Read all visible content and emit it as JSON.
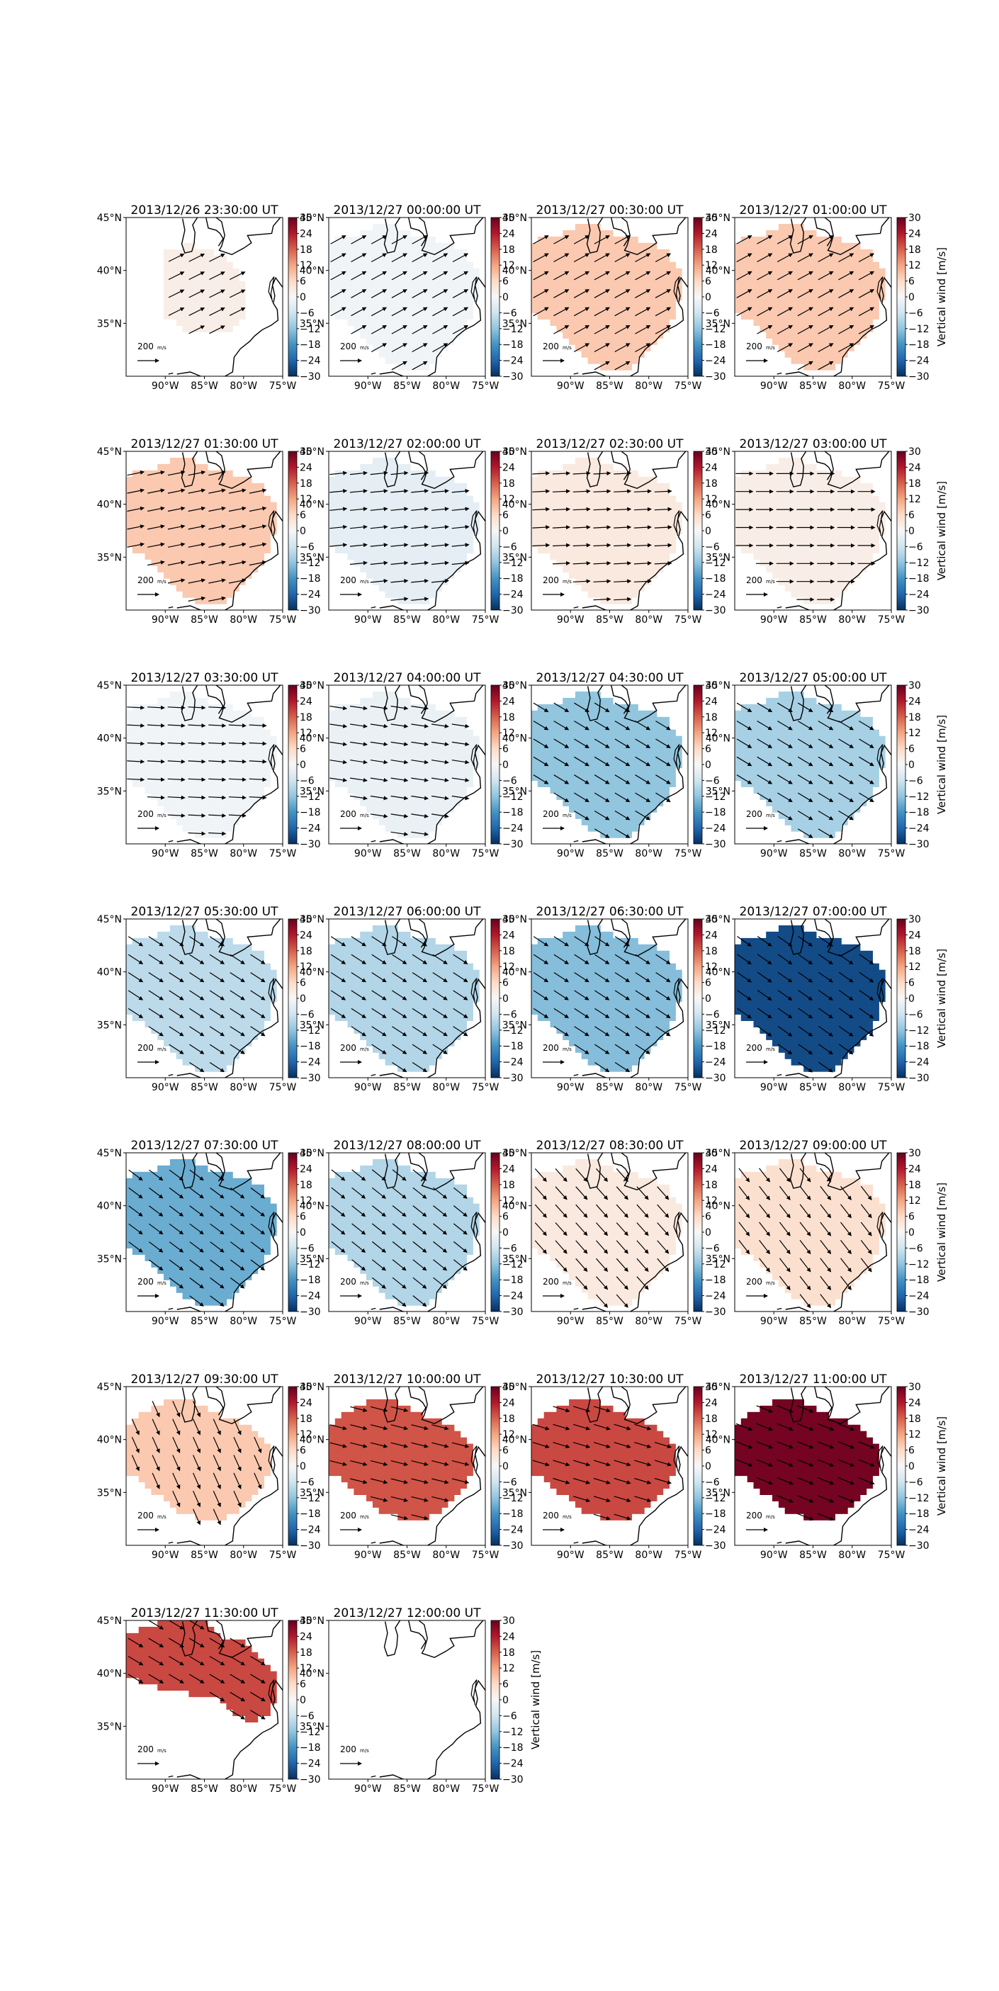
{
  "chart_data": {
    "type": "map-panels",
    "colorbar": {
      "label": "Vertical wind [m/s]",
      "vmin": -30,
      "vmax": 30,
      "ticks": [
        "30",
        "24",
        "18",
        "12",
        "6",
        "0",
        "−6",
        "−12",
        "−18",
        "−24",
        "−30"
      ],
      "colormap": "RdBu_r",
      "labeled_on_panels": [
        4,
        8,
        12,
        16,
        20,
        24,
        26
      ]
    },
    "axes": {
      "lon_ticks": [
        "90°W",
        "85°W",
        "80°W",
        "75°W"
      ],
      "lat_ticks": [
        "45°N",
        "40°N",
        "35°N"
      ],
      "lon_range": [
        -95,
        -75
      ],
      "lat_range": [
        30,
        45
      ]
    },
    "vector_key": {
      "value": "200",
      "unit": "m/s"
    },
    "panels": [
      {
        "title": "2013/12/26 23:30:00 UT",
        "vertical_wind": 2,
        "wind_u": 1.0,
        "wind_v": 0.5,
        "region": "central"
      },
      {
        "title": "2013/12/27 00:00:00 UT",
        "vertical_wind": -1,
        "wind_u": 1.0,
        "wind_v": 0.55,
        "region": "full"
      },
      {
        "title": "2013/12/27 00:30:00 UT",
        "vertical_wind": 8,
        "wind_u": 1.0,
        "wind_v": 0.55,
        "region": "full"
      },
      {
        "title": "2013/12/27 01:00:00 UT",
        "vertical_wind": 8,
        "wind_u": 1.0,
        "wind_v": 0.55,
        "region": "full"
      },
      {
        "title": "2013/12/27 01:30:00 UT",
        "vertical_wind": 8,
        "wind_u": 1.0,
        "wind_v": 0.2,
        "region": "full"
      },
      {
        "title": "2013/12/27 02:00:00 UT",
        "vertical_wind": -3,
        "wind_u": 1.0,
        "wind_v": 0.1,
        "region": "full"
      },
      {
        "title": "2013/12/27 02:30:00 UT",
        "vertical_wind": 3,
        "wind_u": 1.0,
        "wind_v": 0.05,
        "region": "full"
      },
      {
        "title": "2013/12/27 03:00:00 UT",
        "vertical_wind": 2,
        "wind_u": 1.0,
        "wind_v": 0.0,
        "region": "full"
      },
      {
        "title": "2013/12/27 03:30:00 UT",
        "vertical_wind": -1,
        "wind_u": 1.0,
        "wind_v": -0.05,
        "region": "full"
      },
      {
        "title": "2013/12/27 04:00:00 UT",
        "vertical_wind": -2,
        "wind_u": 1.0,
        "wind_v": -0.15,
        "region": "full"
      },
      {
        "title": "2013/12/27 04:30:00 UT",
        "vertical_wind": -12,
        "wind_u": 1.0,
        "wind_v": -0.6,
        "region": "full"
      },
      {
        "title": "2013/12/27 05:00:00 UT",
        "vertical_wind": -10,
        "wind_u": 1.0,
        "wind_v": -0.6,
        "region": "full"
      },
      {
        "title": "2013/12/27 05:30:00 UT",
        "vertical_wind": -8,
        "wind_u": 1.0,
        "wind_v": -0.65,
        "region": "full"
      },
      {
        "title": "2013/12/27 06:00:00 UT",
        "vertical_wind": -9,
        "wind_u": 1.0,
        "wind_v": -0.65,
        "region": "full"
      },
      {
        "title": "2013/12/27 06:30:00 UT",
        "vertical_wind": -13,
        "wind_u": 1.0,
        "wind_v": -0.65,
        "region": "full"
      },
      {
        "title": "2013/12/27 07:00:00 UT",
        "vertical_wind": -27,
        "wind_u": 1.0,
        "wind_v": -0.7,
        "region": "full"
      },
      {
        "title": "2013/12/27 07:30:00 UT",
        "vertical_wind": -15,
        "wind_u": 1.0,
        "wind_v": -0.75,
        "region": "full"
      },
      {
        "title": "2013/12/27 08:00:00 UT",
        "vertical_wind": -9,
        "wind_u": 1.0,
        "wind_v": -0.8,
        "region": "full"
      },
      {
        "title": "2013/12/27 08:30:00 UT",
        "vertical_wind": 3,
        "wind_u": 0.8,
        "wind_v": -0.9,
        "region": "full"
      },
      {
        "title": "2013/12/27 09:00:00 UT",
        "vertical_wind": 5,
        "wind_u": 0.7,
        "wind_v": -0.9,
        "region": "full"
      },
      {
        "title": "2013/12/27 09:30:00 UT",
        "vertical_wind": 8,
        "wind_u": 0.4,
        "wind_v": -0.9,
        "region": "central"
      },
      {
        "title": "2013/12/27 10:00:00 UT",
        "vertical_wind": 19,
        "wind_u": 0.8,
        "wind_v": -0.2,
        "region": "central"
      },
      {
        "title": "2013/12/27 10:30:00 UT",
        "vertical_wind": 20,
        "wind_u": 1.0,
        "wind_v": -0.3,
        "region": "central"
      },
      {
        "title": "2013/12/27 11:00:00 UT",
        "vertical_wind": 29,
        "wind_u": 1.0,
        "wind_v": -0.4,
        "region": "central"
      },
      {
        "title": "2013/12/27 11:30:00 UT",
        "vertical_wind": 20,
        "wind_u": 1.0,
        "wind_v": -0.6,
        "region": "north"
      },
      {
        "title": "2013/12/27 12:00:00 UT",
        "vertical_wind": 0,
        "wind_u": 0,
        "wind_v": 0,
        "region": "none"
      }
    ]
  }
}
